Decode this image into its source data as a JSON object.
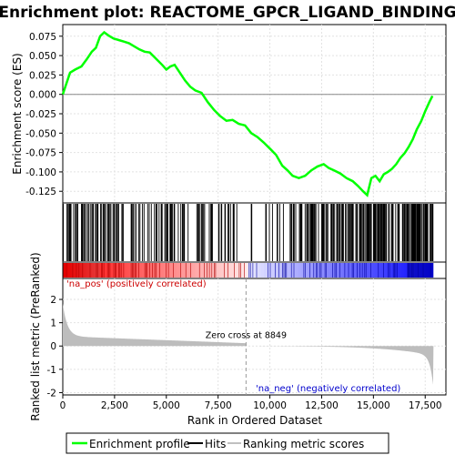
{
  "chart_data": {
    "type": "line",
    "title": "Enrichment plot: REACTOME_GPCR_LIGAND_BINDING",
    "panels": {
      "enrichment": {
        "ylabel": "Enrichment score (ES)",
        "ylim": [
          -0.14,
          0.09
        ],
        "yticks": [
          0.075,
          0.05,
          0.025,
          0.0,
          -0.025,
          -0.05,
          -0.075,
          -0.1,
          -0.125
        ],
        "ytick_labels": [
          "0.075",
          "0.050",
          "0.025",
          "0.000",
          "-0.025",
          "-0.050",
          "-0.075",
          "-0.100",
          "-0.125"
        ],
        "series": [
          {
            "name": "Enrichment profile",
            "color": "#00ff00",
            "x": [
              0,
              150,
              350,
              600,
              900,
              1150,
              1400,
              1600,
              1800,
              2000,
              2200,
              2450,
              2700,
              2950,
              3200,
              3450,
              3700,
              3950,
              4200,
              4500,
              4800,
              5000,
              5200,
              5400,
              5650,
              5900,
              6150,
              6400,
              6700,
              7000,
              7300,
              7600,
              7900,
              8200,
              8500,
              8800,
              9100,
              9400,
              9700,
              10000,
              10300,
              10600,
              10850,
              11100,
              11400,
              11700,
              12000,
              12300,
              12600,
              12850,
              13100,
              13400,
              13700,
              14000,
              14250,
              14500,
              14700,
              14900,
              15100,
              15300,
              15500,
              15700,
              15900,
              16100,
              16300,
              16500,
              16700,
              16900,
              17100,
              17300,
              17500,
              17700,
              17850
            ],
            "y": [
              0.0,
              0.012,
              0.028,
              0.032,
              0.036,
              0.045,
              0.055,
              0.06,
              0.075,
              0.08,
              0.076,
              0.072,
              0.07,
              0.068,
              0.066,
              0.062,
              0.058,
              0.055,
              0.054,
              0.046,
              0.038,
              0.032,
              0.036,
              0.038,
              0.028,
              0.018,
              0.01,
              0.005,
              0.002,
              -0.01,
              -0.02,
              -0.028,
              -0.034,
              -0.033,
              -0.038,
              -0.04,
              -0.05,
              -0.055,
              -0.062,
              -0.07,
              -0.078,
              -0.092,
              -0.098,
              -0.105,
              -0.108,
              -0.105,
              -0.098,
              -0.093,
              -0.09,
              -0.095,
              -0.098,
              -0.102,
              -0.108,
              -0.112,
              -0.118,
              -0.125,
              -0.13,
              -0.108,
              -0.105,
              -0.112,
              -0.103,
              -0.1,
              -0.096,
              -0.09,
              -0.082,
              -0.076,
              -0.068,
              -0.058,
              -0.045,
              -0.035,
              -0.022,
              -0.01,
              -0.002
            ]
          }
        ]
      },
      "ranked_metric": {
        "ylabel": "Ranked list metric (PreRanked)",
        "ylim": [
          -2.1,
          2.9
        ],
        "yticks": [
          2,
          1,
          0,
          -1,
          -2
        ],
        "ytick_labels": [
          "2",
          "1",
          "0",
          "-1",
          "-2"
        ],
        "annotations": {
          "zero_cross": "Zero cross at 8849",
          "pos_label": "'na_pos' (positively correlated)",
          "neg_label": "'na_neg' (negatively correlated)"
        }
      }
    },
    "xlabel": "Rank in Ordered Dataset",
    "xlim": [
      0,
      18500
    ],
    "xticks": [
      0,
      2500,
      5000,
      7500,
      10000,
      12500,
      15000,
      17500
    ],
    "xtick_labels": [
      "0",
      "2,500",
      "5,000",
      "7,500",
      "10,000",
      "12,500",
      "15,000",
      "17,500"
    ],
    "n_genes": 17900,
    "zero_cross": 8849,
    "legend": {
      "placement": "bottom",
      "items": [
        {
          "label": "Enrichment profile",
          "color": "#00ff00"
        },
        {
          "label": "Hits",
          "color": "#000000"
        },
        {
          "label": "Ranking metric scores",
          "color": "#c0c0c0"
        }
      ]
    }
  }
}
